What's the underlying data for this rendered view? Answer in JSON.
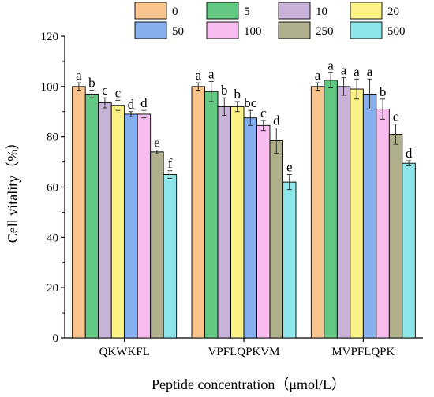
{
  "chart_data": {
    "type": "bar",
    "xlabel": "Peptide concentration（μmol/L）",
    "ylabel": "Cell vitality（%）",
    "ylim": [
      0,
      120
    ],
    "yticks": [
      "0",
      "20",
      "40",
      "60",
      "80",
      "100",
      "120"
    ],
    "categories": [
      "QKWKFL",
      "VPFLQPKVM",
      "MVPFLQPK"
    ],
    "legend_position": "top",
    "series": [
      {
        "name": "0",
        "color": "#F9C38D",
        "values": [
          100.0,
          100.0,
          100.0
        ],
        "errors": [
          1.5,
          1.5,
          1.5
        ],
        "letters": [
          "a",
          "a",
          "a"
        ]
      },
      {
        "name": "5",
        "color": "#62C882",
        "values": [
          97.0,
          98.0,
          102.5
        ],
        "errors": [
          1.5,
          4.0,
          3.0
        ],
        "letters": [
          "b",
          "a",
          "a"
        ]
      },
      {
        "name": "10",
        "color": "#C9B2D8",
        "values": [
          93.5,
          92.0,
          100.0
        ],
        "errors": [
          2.0,
          3.5,
          3.5
        ],
        "letters": [
          "c",
          "b",
          "a"
        ]
      },
      {
        "name": "20",
        "color": "#FCF286",
        "values": [
          92.5,
          92.0,
          99.0
        ],
        "errors": [
          2.0,
          2.0,
          4.0
        ],
        "letters": [
          "c",
          "b",
          "a"
        ]
      },
      {
        "name": "50",
        "color": "#86AFEF",
        "values": [
          89.0,
          87.5,
          97.0
        ],
        "errors": [
          1.0,
          3.0,
          6.0
        ],
        "letters": [
          "d",
          "bc",
          "a"
        ]
      },
      {
        "name": "100",
        "color": "#F9BCEF",
        "values": [
          89.0,
          84.5,
          91.0
        ],
        "errors": [
          1.5,
          2.0,
          4.0
        ],
        "letters": [
          "d",
          "c",
          "b"
        ]
      },
      {
        "name": "250",
        "color": "#B0AF8B",
        "values": [
          74.0,
          78.5,
          81.0
        ],
        "errors": [
          0.7,
          5.0,
          4.0
        ],
        "letters": [
          "e",
          "d",
          "c"
        ]
      },
      {
        "name": "500",
        "color": "#8DE7EA",
        "values": [
          65.0,
          62.0,
          69.5
        ],
        "errors": [
          1.5,
          3.0,
          1.0
        ],
        "letters": [
          "f",
          "e",
          "d"
        ]
      }
    ]
  }
}
